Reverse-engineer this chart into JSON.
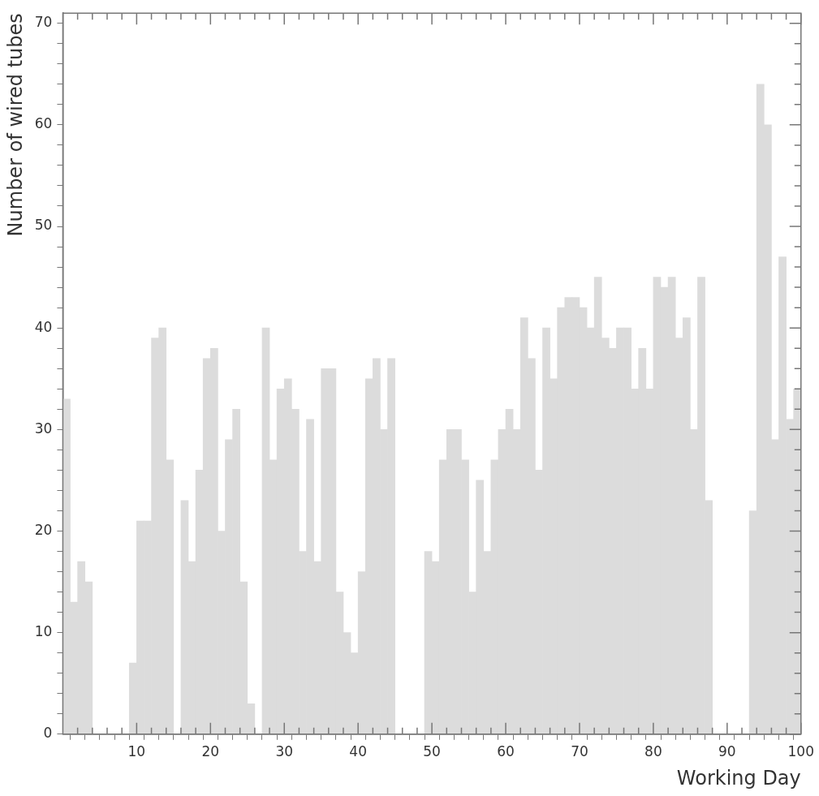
{
  "chart_data": {
    "type": "histogram",
    "xlabel": "Working Day",
    "ylabel": "Number of wired tubes",
    "bins": [
      0,
      1,
      2,
      3,
      4,
      5,
      6,
      7,
      8,
      9,
      10,
      11,
      12,
      13,
      14,
      15,
      16,
      17,
      18,
      19,
      20,
      21,
      22,
      23,
      24,
      25,
      26,
      27,
      28,
      29,
      30,
      31,
      32,
      33,
      34,
      35,
      36,
      37,
      38,
      39,
      40,
      41,
      42,
      43,
      44,
      45,
      46,
      47,
      48,
      49,
      50,
      51,
      52,
      53,
      54,
      55,
      56,
      57,
      58,
      59,
      60,
      61,
      62,
      63,
      64,
      65,
      66,
      67,
      68,
      69,
      70,
      71,
      72,
      73,
      74,
      75,
      76,
      77,
      78,
      79,
      80,
      81,
      82,
      83,
      84,
      85,
      86,
      87,
      88,
      89,
      90,
      91,
      92,
      93,
      94,
      95,
      96,
      97,
      98,
      99,
      100
    ],
    "values": [
      33,
      13,
      17,
      15,
      0,
      0,
      0,
      0,
      0,
      7,
      21,
      21,
      39,
      40,
      27,
      0,
      23,
      17,
      26,
      37,
      38,
      20,
      29,
      32,
      15,
      3,
      0,
      40,
      27,
      34,
      35,
      32,
      18,
      31,
      17,
      36,
      36,
      14,
      10,
      8,
      16,
      35,
      37,
      30,
      37,
      0,
      0,
      0,
      0,
      18,
      17,
      27,
      30,
      30,
      27,
      14,
      25,
      18,
      27,
      30,
      32,
      30,
      41,
      37,
      26,
      40,
      35,
      42,
      43,
      43,
      42,
      40,
      45,
      39,
      38,
      40,
      40,
      34,
      38,
      34,
      45,
      44,
      45,
      39,
      41,
      30,
      45,
      23,
      0,
      0,
      0,
      0,
      0,
      22,
      64,
      60,
      29,
      47,
      31,
      34
    ],
    "color": "#dcdcdc",
    "xlim": [
      0,
      100
    ],
    "xticks": [
      {
        "value": 2,
        "label": null
      },
      {
        "value": 4,
        "label": null
      },
      {
        "value": 6,
        "label": null
      },
      {
        "value": 8,
        "label": null
      },
      10,
      {
        "value": 12,
        "label": null
      },
      {
        "value": 14,
        "label": null
      },
      {
        "value": 16,
        "label": null
      },
      {
        "value": 18,
        "label": null
      },
      20,
      {
        "value": 22,
        "label": null
      },
      {
        "value": 24,
        "label": null
      },
      {
        "value": 26,
        "label": null
      },
      {
        "value": 28,
        "label": null
      },
      30,
      {
        "value": 32,
        "label": null
      },
      {
        "value": 34,
        "label": null
      },
      {
        "value": 36,
        "label": null
      },
      {
        "value": 38,
        "label": null
      },
      40,
      {
        "value": 42,
        "label": null
      },
      {
        "value": 44,
        "label": null
      },
      {
        "value": 46,
        "label": null
      },
      {
        "value": 48,
        "label": null
      },
      50,
      {
        "value": 52,
        "label": null
      },
      {
        "value": 54,
        "label": null
      },
      {
        "value": 56,
        "label": null
      },
      {
        "value": 58,
        "label": null
      },
      60,
      {
        "value": 62,
        "label": null
      },
      {
        "value": 64,
        "label": null
      },
      {
        "value": 66,
        "label": null
      },
      {
        "value": 68,
        "label": null
      },
      70,
      {
        "value": 72,
        "label": null
      },
      {
        "value": 74,
        "label": null
      },
      {
        "value": 76,
        "label": null
      },
      {
        "value": 78,
        "label": null
      },
      80,
      {
        "value": 82,
        "label": null
      },
      {
        "value": 84,
        "label": null
      },
      {
        "value": 86,
        "label": null
      },
      {
        "value": 88,
        "label": null
      },
      90,
      {
        "value": 92,
        "label": null
      },
      {
        "value": 94,
        "label": null
      },
      {
        "value": 96,
        "label": null
      },
      {
        "value": 98,
        "label": null
      },
      100
    ],
    "ylim": [
      0,
      71
    ],
    "yticks": [
      0,
      {
        "value": 2,
        "label": null
      },
      {
        "value": 4,
        "label": null
      },
      {
        "value": 6,
        "label": null
      },
      {
        "value": 8,
        "label": null
      },
      10,
      {
        "value": 12,
        "label": null
      },
      {
        "value": 14,
        "label": null
      },
      {
        "value": 16,
        "label": null
      },
      {
        "value": 18,
        "label": null
      },
      20,
      {
        "value": 22,
        "label": null
      },
      {
        "value": 24,
        "label": null
      },
      {
        "value": 26,
        "label": null
      },
      {
        "value": 28,
        "label": null
      },
      30,
      {
        "value": 32,
        "label": null
      },
      {
        "value": 34,
        "label": null
      },
      {
        "value": 36,
        "label": null
      },
      {
        "value": 38,
        "label": null
      },
      40,
      {
        "value": 42,
        "label": null
      },
      {
        "value": 44,
        "label": null
      },
      {
        "value": 46,
        "label": null
      },
      {
        "value": 48,
        "label": null
      },
      50,
      {
        "value": 52,
        "label": null
      },
      {
        "value": 54,
        "label": null
      },
      {
        "value": 56,
        "label": null
      },
      {
        "value": 58,
        "label": null
      },
      60,
      {
        "value": 62,
        "label": null
      },
      {
        "value": 64,
        "label": null
      },
      {
        "value": 66,
        "label": null
      },
      {
        "value": 68,
        "label": null
      },
      70
    ],
    "grid": false,
    "legend": false
  }
}
